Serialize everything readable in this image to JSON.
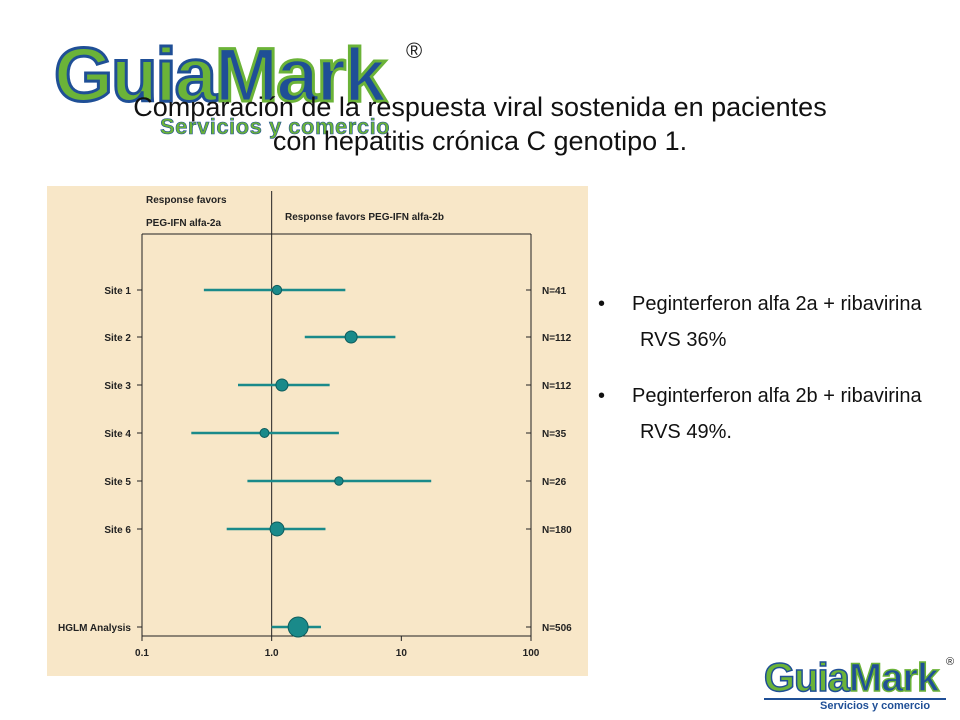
{
  "logo": {
    "word_a": "Guia",
    "word_b": "Mark",
    "registered": "®",
    "tagline": "Servicios y comercio"
  },
  "slide": {
    "title_line1": "Comparación de la respuesta viral sostenida en pacientes",
    "title_line2": "con hepatitis crónica C genotipo 1."
  },
  "bullets": [
    {
      "symbol": "•",
      "text": "Peginterferon alfa 2a + ribavirina",
      "result": "RVS 36%"
    },
    {
      "symbol": "•",
      "text": "Peginterferon alfa 2b + ribavirina",
      "result": "RVS 49%."
    }
  ],
  "colors": {
    "panel": "#f8e7c8",
    "series": "#1a8a8a",
    "axis": "#222222",
    "logo_green": "#6bb338",
    "logo_blue": "#1f4f96"
  },
  "chart_data": {
    "type": "forest",
    "header_left": [
      "Response favors",
      "PEG-IFN alfa-2a"
    ],
    "header_right": "Response favors PEG-IFN alfa-2b",
    "x_scale": "log",
    "xlim": [
      0.1,
      100
    ],
    "x_ticks": [
      0.1,
      1.0,
      10,
      100
    ],
    "x_tick_labels": [
      "0.1",
      "1.0",
      "10",
      "100"
    ],
    "reference_line": 1.0,
    "rows": [
      {
        "label": "Site 1",
        "n": "N=41",
        "estimate": 1.1,
        "lower": 0.3,
        "upper": 3.7,
        "weight": 41
      },
      {
        "label": "Site 2",
        "n": "N=112",
        "estimate": 4.1,
        "lower": 1.8,
        "upper": 9.0,
        "weight": 112
      },
      {
        "label": "Site 3",
        "n": "N=112",
        "estimate": 1.2,
        "lower": 0.55,
        "upper": 2.8,
        "weight": 112
      },
      {
        "label": "Site 4",
        "n": "N=35",
        "estimate": 0.88,
        "lower": 0.24,
        "upper": 3.3,
        "weight": 35
      },
      {
        "label": "Site 5",
        "n": "N=26",
        "estimate": 3.3,
        "lower": 0.65,
        "upper": 17,
        "weight": 26
      },
      {
        "label": "Site 6",
        "n": "N=180",
        "estimate": 1.1,
        "lower": 0.45,
        "upper": 2.6,
        "weight": 180
      },
      {
        "label": "HGLM Analysis",
        "n": "N=506",
        "estimate": 1.6,
        "lower": 1.0,
        "upper": 2.4,
        "weight": 506
      }
    ]
  }
}
